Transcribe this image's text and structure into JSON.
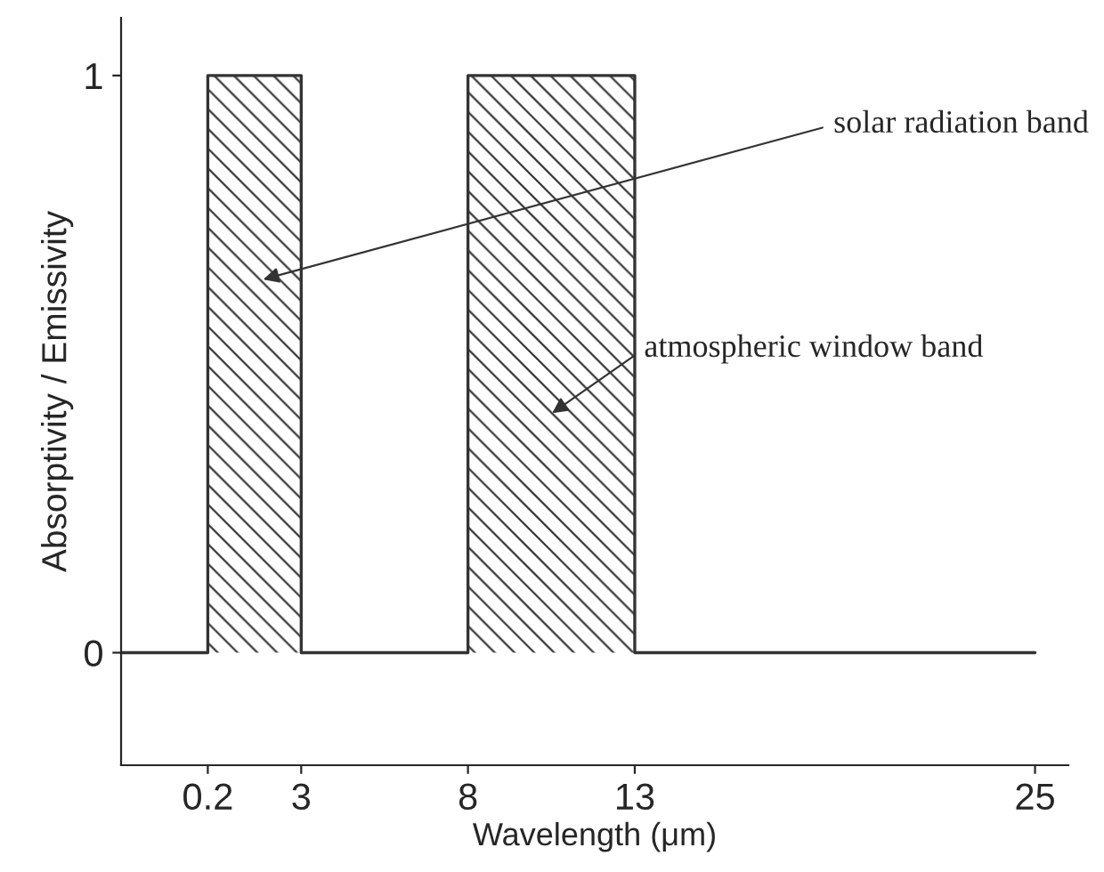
{
  "chart_data": {
    "type": "area",
    "xlabel": "Wavelength (μm)",
    "ylabel": "Absorptivity / Emissivity",
    "series": [
      {
        "color": "#333333",
        "x": [
          -2.4,
          0.2,
          0.2,
          3,
          3,
          8,
          8,
          13,
          13,
          25
        ],
        "values": [
          0,
          0,
          1,
          1,
          0,
          0,
          1,
          1,
          0,
          0
        ]
      }
    ],
    "xlim": [
      -2.4,
      26
    ],
    "xticks": [
      0.2,
      3,
      8,
      13,
      25
    ],
    "ylim": [
      -0.195,
      1.1
    ],
    "yticks": [
      0,
      1
    ],
    "grid": false,
    "legend": false,
    "annotations": [
      "solar radiation band",
      "atmospheric window band"
    ]
  }
}
